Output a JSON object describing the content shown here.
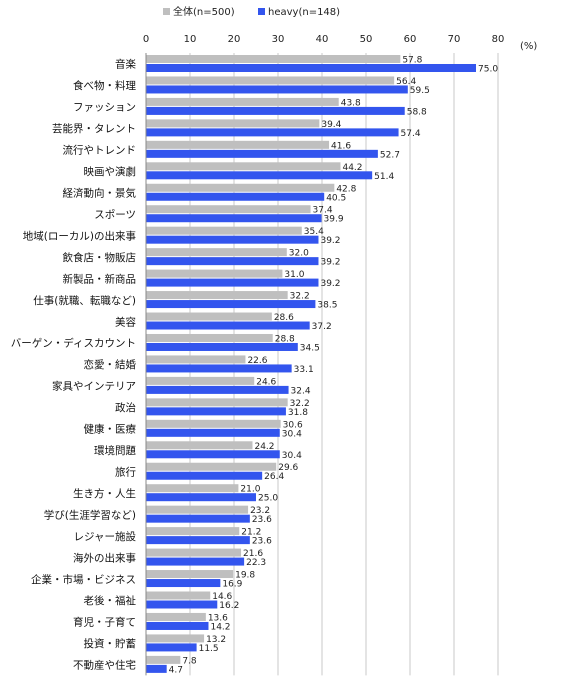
{
  "chart_data": {
    "type": "bar",
    "orientation": "horizontal",
    "unit_label": "(%)",
    "xlim": [
      0,
      80
    ],
    "ticks": [
      0,
      10,
      20,
      30,
      40,
      50,
      60,
      70,
      80
    ],
    "grid": true,
    "legend_position": "top",
    "categories": [
      "音楽",
      "食べ物・料理",
      "ファッション",
      "芸能界・タレント",
      "流行やトレンド",
      "映画や演劇",
      "経済動向・景気",
      "スポーツ",
      "地域(ローカル)の出来事",
      "飲食店・物販店",
      "新製品・新商品",
      "仕事(就職、転職など)",
      "美容",
      "バーゲン・ディスカウント",
      "恋愛・結婚",
      "家具やインテリア",
      "政治",
      "健康・医療",
      "環境問題",
      "旅行",
      "生き方・人生",
      "学び(生涯学習など)",
      "レジャー施設",
      "海外の出来事",
      "企業・市場・ビジネス",
      "老後・福祉",
      "育児・子育て",
      "投資・貯蓄",
      "不動産や住宅"
    ],
    "series": [
      {
        "name": "全体(n=500)",
        "color": "#bfbfbf",
        "values": [
          57.8,
          56.4,
          43.8,
          39.4,
          41.6,
          44.2,
          42.8,
          37.4,
          35.4,
          32.0,
          31.0,
          32.2,
          28.6,
          28.8,
          22.6,
          24.6,
          32.2,
          30.6,
          24.2,
          29.6,
          21.0,
          23.2,
          21.2,
          21.6,
          19.8,
          14.6,
          13.6,
          13.2,
          7.8
        ]
      },
      {
        "name": "heavy(n=148)",
        "color": "#3355ee",
        "values": [
          75.0,
          59.5,
          58.8,
          57.4,
          52.7,
          51.4,
          40.5,
          39.9,
          39.2,
          39.2,
          39.2,
          38.5,
          37.2,
          34.5,
          33.1,
          32.4,
          31.8,
          30.4,
          30.4,
          26.4,
          25.0,
          23.6,
          23.6,
          22.3,
          16.9,
          16.2,
          14.2,
          11.5,
          4.7
        ]
      }
    ]
  }
}
